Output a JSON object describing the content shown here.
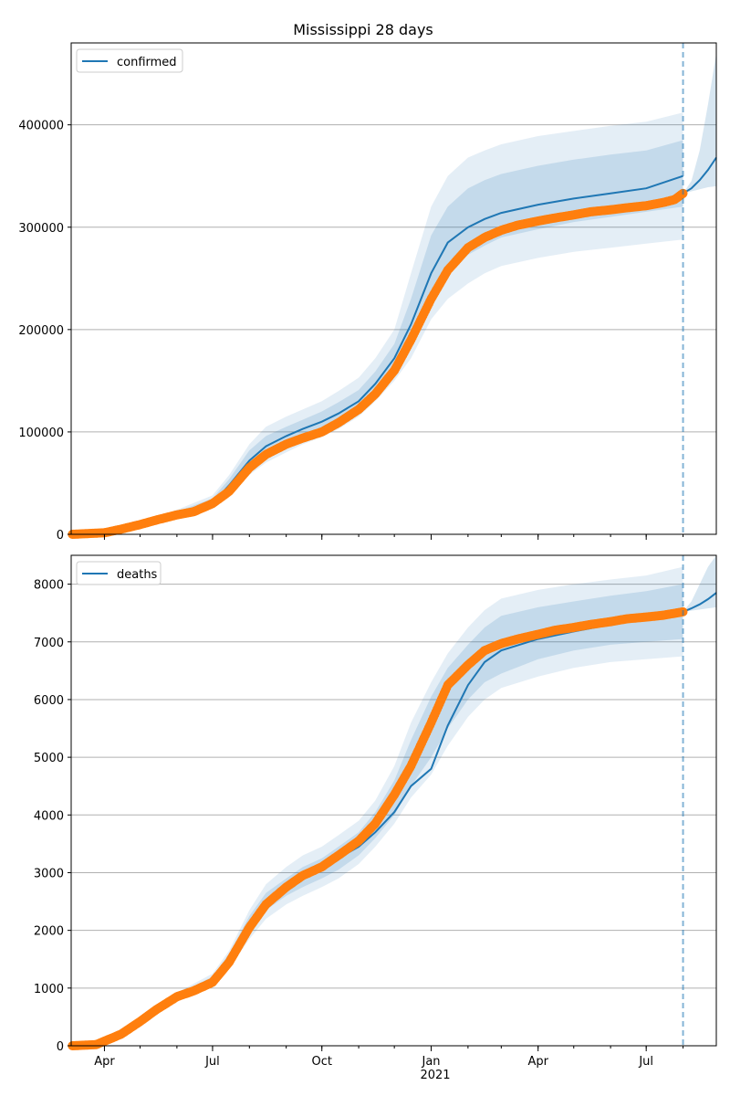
{
  "title": "Mississippi 28 days",
  "colors": {
    "model": "#1f77b4",
    "observed": "#ff7f0e",
    "grid": "#b0b0b0",
    "band": "#1f77b4"
  },
  "x_axis": {
    "ticks": [
      {
        "date": "2020-04-01",
        "label": "Apr"
      },
      {
        "date": "2020-07-01",
        "label": "Jul"
      },
      {
        "date": "2020-10-01",
        "label": "Oct"
      },
      {
        "date": "2021-01-01",
        "label": "Jan"
      },
      {
        "date": "2021-04-01",
        "label": "Apr"
      },
      {
        "date": "2021-07-01",
        "label": "Jul"
      }
    ],
    "year_label": "2021",
    "range": [
      "2020-03-04",
      "2021-08-29"
    ],
    "forecast_start": "2021-08-01"
  },
  "chart_data": [
    {
      "type": "line",
      "legend": "confirmed",
      "legend_position": "upper left",
      "grid": "horizontal",
      "ylim": [
        0,
        480000
      ],
      "yticks": [
        0,
        100000,
        200000,
        300000,
        400000
      ],
      "bands": {
        "dates": [
          "2020-03-10",
          "2020-04-01",
          "2020-05-01",
          "2020-06-01",
          "2020-07-01",
          "2020-07-15",
          "2020-08-01",
          "2020-08-15",
          "2020-09-01",
          "2020-09-15",
          "2020-10-01",
          "2020-10-15",
          "2020-11-01",
          "2020-11-15",
          "2020-12-01",
          "2020-12-15",
          "2021-01-01",
          "2021-01-15",
          "2021-02-01",
          "2021-02-15",
          "2021-03-01",
          "2021-04-01",
          "2021-05-01",
          "2021-06-01",
          "2021-07-01",
          "2021-08-01"
        ],
        "outer_lower": [
          0,
          2000,
          7000,
          15000,
          25000,
          38000,
          58000,
          70000,
          80000,
          88000,
          95000,
          103000,
          115000,
          130000,
          150000,
          172000,
          210000,
          230000,
          245000,
          255000,
          262000,
          270000,
          276000,
          280000,
          284000,
          288000
        ],
        "outer_upper": [
          1000,
          4000,
          12000,
          24000,
          38000,
          58000,
          88000,
          105000,
          115000,
          122000,
          130000,
          140000,
          153000,
          172000,
          200000,
          255000,
          320000,
          350000,
          368000,
          375000,
          381000,
          389000,
          394000,
          399000,
          403000,
          412000
        ],
        "inner_lower": [
          0,
          2500,
          8000,
          17000,
          28000,
          44000,
          68000,
          80000,
          89000,
          96000,
          103000,
          111000,
          123000,
          140000,
          163000,
          192000,
          235000,
          258000,
          273000,
          282000,
          290000,
          298000,
          305000,
          310000,
          315000,
          320000
        ],
        "inner_upper": [
          1000,
          3500,
          11000,
          22000,
          35000,
          54000,
          82000,
          96000,
          105000,
          112000,
          120000,
          129000,
          141000,
          159000,
          186000,
          230000,
          292000,
          320000,
          338000,
          346000,
          352000,
          360000,
          366000,
          371000,
          375000,
          385000
        ]
      },
      "series": [
        {
          "name": "confirmed",
          "kind": "model",
          "dates": [
            "2020-03-05",
            "2020-04-01",
            "2020-05-01",
            "2020-06-01",
            "2020-07-01",
            "2020-07-15",
            "2020-08-01",
            "2020-08-15",
            "2020-09-01",
            "2020-09-15",
            "2020-10-01",
            "2020-10-15",
            "2020-11-01",
            "2020-11-15",
            "2020-12-01",
            "2020-12-15",
            "2021-01-01",
            "2021-01-15",
            "2021-02-01",
            "2021-02-15",
            "2021-03-01",
            "2021-04-01",
            "2021-05-01",
            "2021-06-01",
            "2021-07-01",
            "2021-08-01"
          ],
          "values": [
            0,
            2000,
            9000,
            19000,
            30000,
            48000,
            72000,
            86000,
            96000,
            103000,
            110000,
            118000,
            130000,
            147000,
            172000,
            205000,
            255000,
            285000,
            300000,
            308000,
            314000,
            322000,
            328000,
            333000,
            338000,
            350000
          ]
        },
        {
          "name": "forecast",
          "kind": "forecast",
          "dates": [
            "2021-08-01",
            "2021-08-08",
            "2021-08-15",
            "2021-08-22",
            "2021-08-29"
          ],
          "values": [
            333000,
            338000,
            346000,
            356000,
            368000
          ],
          "lower": [
            333000,
            335000,
            337000,
            339000,
            340000
          ],
          "upper": [
            333000,
            345000,
            375000,
            420000,
            470000
          ]
        },
        {
          "name": "observed",
          "kind": "observed",
          "dates": [
            "2020-03-05",
            "2020-04-01",
            "2020-04-15",
            "2020-05-01",
            "2020-05-15",
            "2020-06-01",
            "2020-06-15",
            "2020-07-01",
            "2020-07-15",
            "2020-08-01",
            "2020-08-15",
            "2020-09-01",
            "2020-09-15",
            "2020-10-01",
            "2020-10-15",
            "2020-11-01",
            "2020-11-15",
            "2020-12-01",
            "2020-12-15",
            "2021-01-01",
            "2021-01-15",
            "2021-02-01",
            "2021-02-15",
            "2021-03-01",
            "2021-03-15",
            "2021-04-01",
            "2021-04-15",
            "2021-05-01",
            "2021-05-15",
            "2021-06-01",
            "2021-06-15",
            "2021-07-01",
            "2021-07-15",
            "2021-07-25",
            "2021-08-01"
          ],
          "values": [
            0,
            1500,
            5000,
            9500,
            14000,
            19000,
            22000,
            30000,
            42000,
            65000,
            78000,
            88000,
            94000,
            100000,
            109000,
            122000,
            137000,
            160000,
            190000,
            230000,
            258000,
            280000,
            290000,
            297000,
            302000,
            306000,
            309000,
            312000,
            315000,
            317000,
            319000,
            321000,
            324000,
            327000,
            333000
          ]
        }
      ]
    },
    {
      "type": "line",
      "legend": "deaths",
      "legend_position": "upper left",
      "grid": "horizontal",
      "ylim": [
        0,
        8500
      ],
      "yticks": [
        0,
        1000,
        2000,
        3000,
        4000,
        5000,
        6000,
        7000,
        8000
      ],
      "bands": {
        "dates": [
          "2020-03-10",
          "2020-04-01",
          "2020-05-01",
          "2020-06-01",
          "2020-07-01",
          "2020-07-15",
          "2020-08-01",
          "2020-08-15",
          "2020-09-01",
          "2020-09-15",
          "2020-10-01",
          "2020-10-15",
          "2020-11-01",
          "2020-11-15",
          "2020-12-01",
          "2020-12-15",
          "2021-01-01",
          "2021-01-15",
          "2021-02-01",
          "2021-02-15",
          "2021-03-01",
          "2021-04-01",
          "2021-05-01",
          "2021-06-01",
          "2021-07-01",
          "2021-08-01"
        ],
        "outer_lower": [
          0,
          30,
          350,
          780,
          1050,
          1350,
          1850,
          2200,
          2450,
          2600,
          2750,
          2900,
          3150,
          3450,
          3850,
          4300,
          4700,
          5200,
          5700,
          6000,
          6200,
          6400,
          6550,
          6650,
          6700,
          6750
        ],
        "outer_upper": [
          40,
          120,
          500,
          920,
          1250,
          1650,
          2350,
          2800,
          3100,
          3300,
          3450,
          3650,
          3900,
          4250,
          4850,
          5600,
          6300,
          6800,
          7250,
          7550,
          7750,
          7900,
          8000,
          8080,
          8150,
          8300
        ],
        "inner_lower": [
          0,
          50,
          400,
          820,
          1100,
          1450,
          2000,
          2350,
          2600,
          2750,
          2900,
          3050,
          3300,
          3600,
          4000,
          4500,
          5000,
          5500,
          6000,
          6300,
          6450,
          6700,
          6850,
          6950,
          7000,
          7050
        ],
        "inner_upper": [
          30,
          100,
          470,
          890,
          1200,
          1600,
          2250,
          2650,
          2900,
          3100,
          3250,
          3450,
          3700,
          4050,
          4600,
          5300,
          6050,
          6550,
          6950,
          7250,
          7450,
          7600,
          7700,
          7800,
          7880,
          8000
        ]
      },
      "series": [
        {
          "name": "deaths",
          "kind": "model",
          "dates": [
            "2020-03-05",
            "2020-04-01",
            "2020-05-01",
            "2020-06-01",
            "2020-07-01",
            "2020-07-15",
            "2020-08-01",
            "2020-08-15",
            "2020-09-01",
            "2020-09-15",
            "2020-10-01",
            "2020-10-15",
            "2020-11-01",
            "2020-11-15",
            "2020-12-01",
            "2020-12-15",
            "2021-01-01",
            "2021-01-15",
            "2021-02-01",
            "2021-02-15",
            "2021-03-01",
            "2021-04-01",
            "2021-05-01",
            "2021-06-01",
            "2021-07-01",
            "2021-08-01"
          ],
          "values": [
            0,
            50,
            420,
            850,
            1130,
            1500,
            2100,
            2500,
            2780,
            2950,
            3100,
            3250,
            3450,
            3700,
            4050,
            4500,
            4800,
            5550,
            6250,
            6650,
            6850,
            7050,
            7180,
            7300,
            7400,
            7520
          ]
        },
        {
          "name": "forecast",
          "kind": "forecast",
          "dates": [
            "2021-08-01",
            "2021-08-08",
            "2021-08-15",
            "2021-08-22",
            "2021-08-29"
          ],
          "values": [
            7520,
            7580,
            7650,
            7740,
            7850
          ],
          "lower": [
            7520,
            7540,
            7560,
            7580,
            7600
          ],
          "upper": [
            7520,
            7700,
            8000,
            8300,
            8500
          ]
        },
        {
          "name": "observed",
          "kind": "observed",
          "dates": [
            "2020-03-05",
            "2020-03-25",
            "2020-04-01",
            "2020-04-15",
            "2020-05-01",
            "2020-05-15",
            "2020-06-01",
            "2020-06-15",
            "2020-07-01",
            "2020-07-15",
            "2020-08-01",
            "2020-08-15",
            "2020-09-01",
            "2020-09-15",
            "2020-10-01",
            "2020-10-15",
            "2020-11-01",
            "2020-11-15",
            "2020-12-01",
            "2020-12-15",
            "2021-01-01",
            "2021-01-15",
            "2021-02-01",
            "2021-02-15",
            "2021-03-01",
            "2021-03-15",
            "2021-04-01",
            "2021-04-15",
            "2021-05-01",
            "2021-05-15",
            "2021-06-01",
            "2021-06-15",
            "2021-07-01",
            "2021-07-15",
            "2021-08-01"
          ],
          "values": [
            0,
            20,
            80,
            200,
            420,
            630,
            850,
            950,
            1100,
            1450,
            2050,
            2450,
            2750,
            2950,
            3100,
            3300,
            3550,
            3850,
            4350,
            4850,
            5600,
            6250,
            6600,
            6850,
            6970,
            7050,
            7130,
            7200,
            7250,
            7300,
            7350,
            7400,
            7430,
            7460,
            7520
          ]
        }
      ]
    }
  ]
}
